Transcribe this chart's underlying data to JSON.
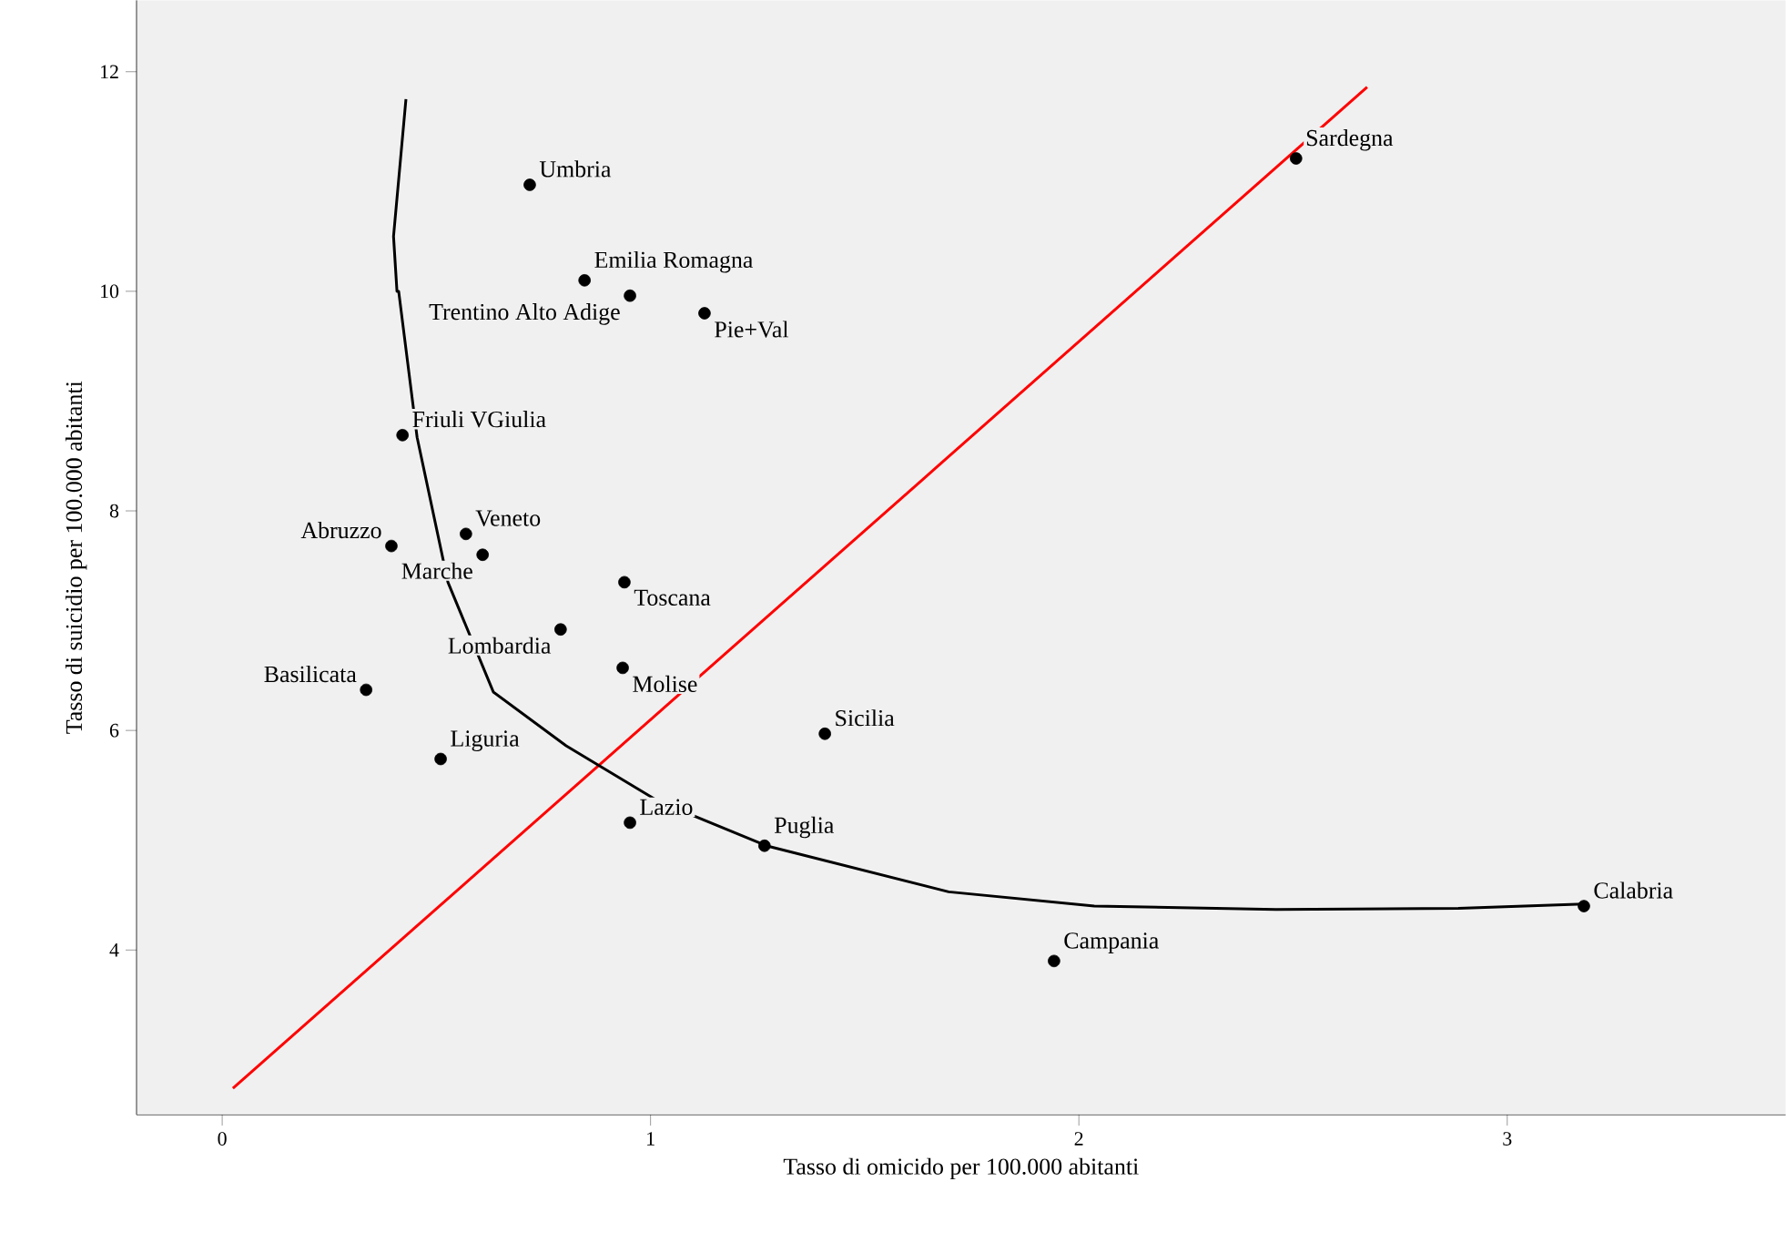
{
  "chart_data": {
    "type": "scatter",
    "xlabel": "Tasso di omicido per 100.000 abitanti",
    "ylabel": "Tasso di suicidio per 100.000 abitanti",
    "xlim": [
      -0.2,
      3.65
    ],
    "ylim": [
      2.5,
      12.65
    ],
    "xticks": [
      0,
      1,
      2,
      3
    ],
    "yticks": [
      4,
      6,
      8,
      10,
      12
    ],
    "grid": false,
    "series": [
      {
        "color": "#000000",
        "marker": "circle",
        "x": [
          0.718,
          0.846,
          0.952,
          1.126,
          2.507,
          0.421,
          0.395,
          0.569,
          0.608,
          0.939,
          0.79,
          0.935,
          0.336,
          0.51,
          0.952,
          1.407,
          1.266,
          1.942,
          3.179
        ],
        "values": [
          10.97,
          10.1,
          9.96,
          9.8,
          11.21,
          8.69,
          7.68,
          7.79,
          7.6,
          7.35,
          6.92,
          6.57,
          6.37,
          5.74,
          5.16,
          5.97,
          4.95,
          3.9,
          4.4
        ]
      },
      {
        "type": "line",
        "color": "#ff0000",
        "marker": "none",
        "line_style": "solid",
        "x": [
          0.025,
          2.673
        ],
        "values": [
          2.74,
          11.86
        ]
      },
      {
        "type": "line",
        "color": "#000000",
        "marker": "none",
        "line_style": "solid",
        "x": [
          0.429,
          0.4,
          0.408,
          0.412,
          0.455,
          0.527,
          0.633,
          0.803,
          1.016,
          1.27,
          1.696,
          2.036,
          2.46,
          2.886,
          3.179
        ],
        "values": [
          11.75,
          10.5,
          10.0,
          10.0,
          8.67,
          7.35,
          6.35,
          5.86,
          5.36,
          4.95,
          4.53,
          4.4,
          4.37,
          4.38,
          4.42
        ]
      }
    ],
    "annotations": [
      {
        "text": "Umbria",
        "x": 0.718,
        "y": 10.97
      },
      {
        "text": "Emilia Romagna",
        "x": 0.846,
        "y": 10.1
      },
      {
        "text": "Trentino Alto Adige",
        "x": 0.952,
        "y": 9.96
      },
      {
        "text": "Pie+Val",
        "x": 1.126,
        "y": 9.8
      },
      {
        "text": "Sardegna",
        "x": 2.507,
        "y": 11.21
      },
      {
        "text": "Friuli VGiulia",
        "x": 0.421,
        "y": 8.69
      },
      {
        "text": "Abruzzo",
        "x": 0.395,
        "y": 7.68
      },
      {
        "text": "Veneto",
        "x": 0.569,
        "y": 7.79
      },
      {
        "text": "Marche",
        "x": 0.608,
        "y": 7.6
      },
      {
        "text": "Toscana",
        "x": 0.939,
        "y": 7.35
      },
      {
        "text": "Lombardia",
        "x": 0.79,
        "y": 6.92
      },
      {
        "text": "Molise",
        "x": 0.935,
        "y": 6.57
      },
      {
        "text": "Basilicata",
        "x": 0.336,
        "y": 6.37
      },
      {
        "text": "Liguria",
        "x": 0.51,
        "y": 5.74
      },
      {
        "text": "Lazio",
        "x": 0.952,
        "y": 5.16
      },
      {
        "text": "Sicilia",
        "x": 1.407,
        "y": 5.97
      },
      {
        "text": "Puglia",
        "x": 1.266,
        "y": 4.95
      },
      {
        "text": "Campania",
        "x": 1.942,
        "y": 3.9
      },
      {
        "text": "Calabria",
        "x": 3.179,
        "y": 4.4
      }
    ]
  }
}
